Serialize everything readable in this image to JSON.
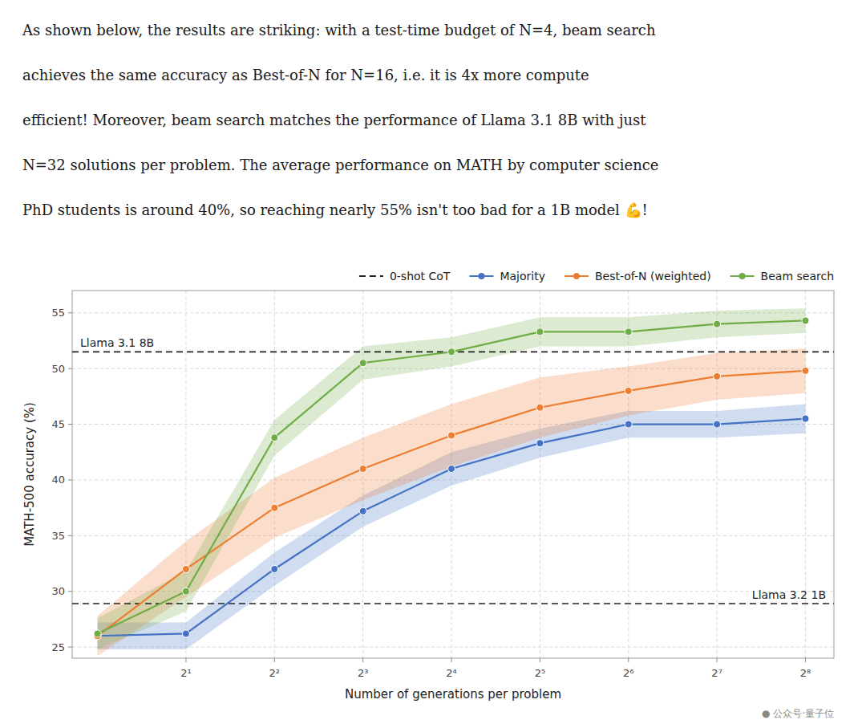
{
  "chart_data": {
    "type": "line",
    "paragraph": [
      "As shown below, the results are striking: with a test-time budget of N=4, beam search",
      "achieves the same accuracy as Best-of-N for N=16, i.e. it is 4x more compute",
      "efficient! Moreover, beam search matches the performance of Llama 3.1 8B with just",
      "N=32 solutions per problem. The average performance on MATH by computer science",
      "PhD students is around 40%, so reaching nearly 55% isn't too bad for a 1B model 💪!"
    ],
    "annotations": [
      "●  公众号·量子位"
    ],
    "x_label": "Number of generations per problem",
    "y_label": "MATH-500 accuracy (%)",
    "log": "x",
    "grid": true,
    "legend": "top",
    "marker": "circle",
    "xlim": [
      0.82,
      320
    ],
    "xticks": [
      {
        "value": 2,
        "label": "2¹"
      },
      {
        "value": 4,
        "label": "2²"
      },
      {
        "value": 8,
        "label": "2³"
      },
      {
        "value": 16,
        "label": "2⁴"
      },
      {
        "value": 32,
        "label": "2⁵"
      },
      {
        "value": 64,
        "label": "2⁶"
      },
      {
        "value": 128,
        "label": "2⁷"
      },
      {
        "value": 256,
        "label": "2⁸"
      }
    ],
    "ylim": [
      24,
      57
    ],
    "yticks": [
      25,
      30,
      35,
      40,
      45,
      50,
      55
    ],
    "x": [
      1,
      2,
      4,
      8,
      16,
      32,
      64,
      128,
      256
    ],
    "reference_lines": {
      "name": "0-shot CoT",
      "line_style": "dashed",
      "lines": [
        {
          "value": 51.5,
          "label": "Llama 3.1 8B"
        },
        {
          "value": 28.9,
          "label": "Llama 3.2 1B"
        }
      ]
    },
    "series": [
      {
        "name": "Majority",
        "color": "#4472C4",
        "values": [
          26.0,
          26.2,
          32.0,
          37.2,
          41.0,
          43.3,
          45.0,
          45.0,
          45.5
        ],
        "lower": [
          24.8,
          24.8,
          30.5,
          35.8,
          39.5,
          42.0,
          43.8,
          43.8,
          44.2
        ],
        "upper": [
          27.2,
          27.2,
          33.5,
          38.6,
          42.5,
          44.6,
          46.2,
          46.2,
          46.8
        ]
      },
      {
        "name": "Best-of-N (weighted)",
        "color": "#ED7D31",
        "values": [
          26.0,
          32.0,
          37.5,
          41.0,
          44.0,
          46.5,
          48.0,
          49.3,
          49.8
        ],
        "lower": [
          24.2,
          29.5,
          34.8,
          38.2,
          41.2,
          43.8,
          45.8,
          47.2,
          47.8
        ],
        "upper": [
          27.8,
          34.5,
          40.2,
          43.8,
          46.8,
          49.2,
          50.2,
          51.4,
          51.8
        ]
      },
      {
        "name": "Beam search",
        "color": "#70AD47",
        "values": [
          26.2,
          30.0,
          43.8,
          50.5,
          51.5,
          53.3,
          53.3,
          54.0,
          54.3
        ],
        "lower": [
          24.8,
          28.2,
          42.2,
          49.0,
          50.2,
          52.0,
          52.0,
          52.8,
          53.2
        ],
        "upper": [
          27.6,
          31.8,
          45.4,
          52.0,
          52.8,
          54.6,
          54.6,
          55.2,
          55.4
        ]
      }
    ]
  }
}
